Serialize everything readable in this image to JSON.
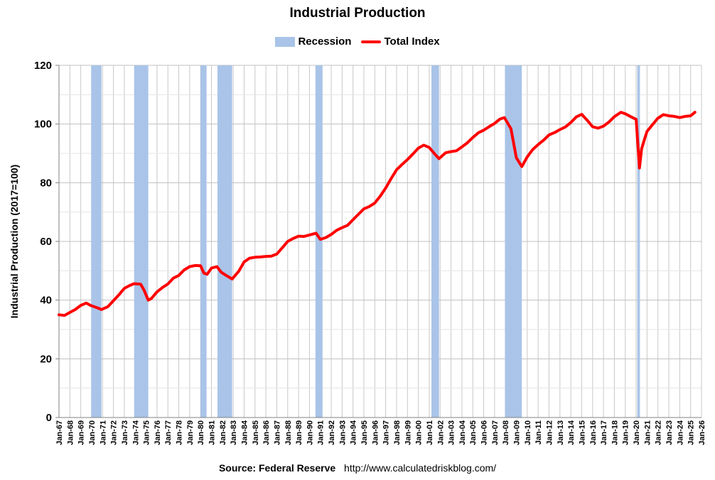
{
  "chart_data": {
    "type": "line",
    "title": "Industrial Production",
    "ylabel": "Industrial Production (2017=100)",
    "xlabel": "",
    "ylim": [
      0,
      120
    ],
    "yticks": [
      0,
      20,
      40,
      60,
      80,
      100,
      120
    ],
    "xlim": [
      1967,
      2026
    ],
    "x_tick_labels": [
      "Jan-67",
      "Jan-68",
      "Jan-69",
      "Jan-70",
      "Jan-71",
      "Jan-72",
      "Jan-73",
      "Jan-74",
      "Jan-75",
      "Jan-76",
      "Jan-77",
      "Jan-78",
      "Jan-79",
      "Jan-80",
      "Jan-81",
      "Jan-82",
      "Jan-83",
      "Jan-84",
      "Jan-85",
      "Jan-86",
      "Jan-87",
      "Jan-88",
      "Jan-89",
      "Jan-90",
      "Jan-91",
      "Jan-92",
      "Jan-93",
      "Jan-94",
      "Jan-95",
      "Jan-96",
      "Jan-97",
      "Jan-98",
      "Jan-99",
      "Jan-00",
      "Jan-01",
      "Jan-02",
      "Jan-03",
      "Jan-04",
      "Jan-05",
      "Jan-06",
      "Jan-07",
      "Jan-08",
      "Jan-09",
      "Jan-10",
      "Jan-11",
      "Jan-12",
      "Jan-13",
      "Jan-14",
      "Jan-15",
      "Jan-16",
      "Jan-17",
      "Jan-18",
      "Jan-19",
      "Jan-20",
      "Jan-21",
      "Jan-22",
      "Jan-23",
      "Jan-24",
      "Jan-25",
      "Jan-26"
    ],
    "grid": true,
    "legend": "top-center",
    "series": [
      {
        "name": "Total Index",
        "color": "#ff0000",
        "x": [
          1967.0,
          1967.5,
          1968.0,
          1968.5,
          1969.0,
          1969.5,
          1969.9,
          1970.5,
          1970.9,
          1971.5,
          1972.0,
          1972.5,
          1973.0,
          1973.5,
          1973.9,
          1974.5,
          1974.8,
          1975.2,
          1975.5,
          1976.0,
          1976.5,
          1977.0,
          1977.5,
          1978.0,
          1978.5,
          1979.0,
          1979.5,
          1980.0,
          1980.3,
          1980.6,
          1981.0,
          1981.5,
          1981.9,
          1982.4,
          1982.9,
          1983.5,
          1984.0,
          1984.5,
          1985.0,
          1985.5,
          1986.0,
          1986.5,
          1987.0,
          1987.5,
          1988.0,
          1988.5,
          1989.0,
          1989.5,
          1990.0,
          1990.6,
          1991.0,
          1991.5,
          1992.0,
          1992.5,
          1993.0,
          1993.5,
          1994.0,
          1994.5,
          1995.0,
          1995.5,
          1996.0,
          1996.5,
          1997.0,
          1997.5,
          1998.0,
          1998.5,
          1999.0,
          1999.5,
          2000.0,
          2000.5,
          2001.0,
          2001.5,
          2001.9,
          2002.5,
          2003.0,
          2003.5,
          2004.0,
          2004.5,
          2005.0,
          2005.5,
          2006.0,
          2006.5,
          2007.0,
          2007.5,
          2007.9,
          2008.5,
          2009.0,
          2009.5,
          2010.0,
          2010.5,
          2011.0,
          2011.5,
          2012.0,
          2012.5,
          2013.0,
          2013.5,
          2014.0,
          2014.5,
          2015.0,
          2015.5,
          2016.0,
          2016.5,
          2017.0,
          2017.5,
          2018.0,
          2018.6,
          2019.0,
          2019.5,
          2020.0,
          2020.3,
          2020.5,
          2020.8,
          2021.0,
          2021.5,
          2022.0,
          2022.5,
          2023.0,
          2023.5,
          2024.0,
          2024.5,
          2025.0,
          2025.4
        ],
        "values": [
          35,
          34.8,
          35.8,
          36.8,
          38.2,
          39,
          38.2,
          37.4,
          36.8,
          37.8,
          39.8,
          41.8,
          44,
          45,
          45.6,
          45.4,
          43.5,
          40,
          40.6,
          42.8,
          44.3,
          45.5,
          47.5,
          48.4,
          50.3,
          51.4,
          51.8,
          51.7,
          49.2,
          48.8,
          50.9,
          51.4,
          49.5,
          48.3,
          47.2,
          49.8,
          53,
          54.3,
          54.6,
          54.7,
          54.9,
          55,
          55.7,
          57.8,
          60,
          61,
          61.8,
          61.7,
          62.2,
          62.8,
          60.7,
          61.3,
          62.4,
          63.8,
          64.7,
          65.5,
          67.4,
          69.3,
          71.1,
          71.9,
          73.1,
          75.4,
          78.2,
          81.4,
          84.4,
          86.2,
          87.9,
          89.8,
          91.8,
          92.8,
          92,
          89.8,
          88.2,
          90.2,
          90.6,
          90.9,
          92.2,
          93.6,
          95.4,
          97,
          97.9,
          99.1,
          100.2,
          101.7,
          102.2,
          98.4,
          88.5,
          85.5,
          88.8,
          91.3,
          93,
          94.5,
          96.3,
          97.1,
          98.1,
          99,
          100.5,
          102.4,
          103.3,
          101.3,
          99.1,
          98.6,
          99.3,
          100.7,
          102.5,
          104,
          103.5,
          102.5,
          101.6,
          85,
          91.5,
          95.2,
          97.5,
          99.8,
          102,
          103.2,
          102.8,
          102.6,
          102.2,
          102.6,
          102.8,
          104
        ]
      }
    ],
    "recessions": [
      [
        1969.95,
        1970.9
      ],
      [
        1973.9,
        1975.2
      ],
      [
        1980.0,
        1980.55
      ],
      [
        1981.55,
        1982.9
      ],
      [
        1990.55,
        1991.2
      ],
      [
        2001.2,
        2001.9
      ],
      [
        2007.95,
        2009.5
      ],
      [
        2020.1,
        2020.35
      ]
    ]
  },
  "legend": {
    "recession_label": "Recession",
    "series_label": "Total Index",
    "recession_color": "#a9c4e8",
    "line_color": "#ff0000"
  },
  "footer": {
    "source": "Source: Federal Reserve",
    "url": "http://www.calculatedriskblog.com/"
  }
}
